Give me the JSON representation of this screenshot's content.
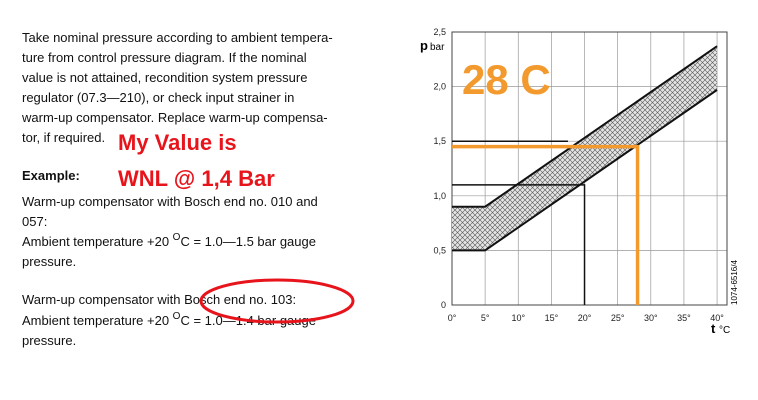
{
  "text": {
    "lines": [
      "Take nominal pressure according to ambient tempera-",
      "ture from control pressure diagram. If the nominal",
      "value is not attained, recondition system pressure",
      "regulator (07.3—210), or check input strainer in",
      "warm-up compensator. Replace warm-up compensa-",
      "tor, if required."
    ],
    "example_heading": "Example:",
    "example1": [
      "Warm-up compensator with Bosch end no. 010 and",
      "057:"
    ],
    "ambient1": {
      "before": "Ambient temperature +20 ",
      "sup": "O",
      "after": "C = 1.0—1.5 bar gauge"
    },
    "pressure1": "pressure.",
    "example2": "Warm-up compensator with Bosch end no. 103:",
    "ambient2": {
      "before": "Ambient temperature +20 ",
      "sup": "O",
      "after": "C = 1.0—1.4 bar gauge"
    },
    "pressure2": "pressure."
  },
  "annotations": {
    "my_value": [
      "My Value is",
      "WNL @ 1,4 Bar"
    ],
    "temperature": "28 C"
  },
  "chart": {
    "y_label": "p",
    "y_unit": "bar",
    "x_label": "t",
    "x_unit": "°C",
    "code": "1074-6516/4",
    "xlim": [
      0,
      41.5
    ],
    "ylim": [
      0,
      2.5
    ],
    "xticks": [
      {
        "value": 0,
        "label": "0°"
      },
      {
        "value": 5,
        "label": "5°"
      },
      {
        "value": 10,
        "label": "10°"
      },
      {
        "value": 15,
        "label": "15°"
      },
      {
        "value": 20,
        "label": "20°"
      },
      {
        "value": 25,
        "label": "25°"
      },
      {
        "value": 30,
        "label": "30°"
      },
      {
        "value": 35,
        "label": "35°"
      },
      {
        "value": 40,
        "label": "40°"
      }
    ],
    "yticks": [
      0,
      {
        "value": 0.5,
        "label": "0,5"
      },
      {
        "value": 1,
        "label": "1,0"
      },
      {
        "value": 1.5,
        "label": "1,5"
      },
      {
        "value": 2,
        "label": "2,0"
      },
      {
        "value": 2.5,
        "label": "2,5"
      }
    ],
    "band": {
      "upper": {
        "x": [
          0,
          5,
          40
        ],
        "values": [
          0.9,
          0.9,
          2.37
        ]
      },
      "lower": {
        "x": [
          0,
          5,
          40
        ],
        "values": [
          0.5,
          0.5,
          1.97
        ]
      }
    },
    "lines": [
      {
        "color": "#111111",
        "x": [
          0,
          20,
          20
        ],
        "values": [
          1.1,
          1.1,
          0
        ]
      },
      {
        "color": "#111111",
        "x": [
          0,
          17.5
        ],
        "values": [
          1.5,
          1.5
        ]
      },
      {
        "color": "#f39a2e",
        "x": [
          0,
          28,
          28
        ],
        "values": [
          1.45,
          1.45,
          0
        ]
      }
    ]
  }
}
